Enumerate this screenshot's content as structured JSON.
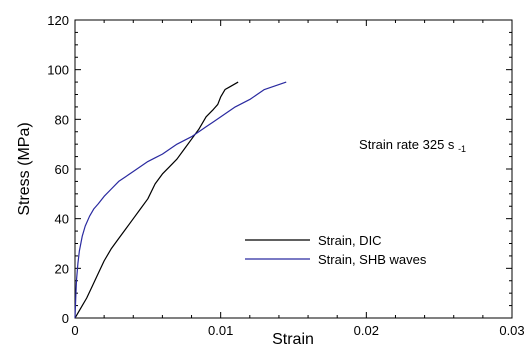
{
  "chart_data": {
    "type": "line",
    "xlabel": "Strain",
    "ylabel": "Stress (MPa)",
    "xlim": [
      0,
      0.03
    ],
    "ylim": [
      0,
      120
    ],
    "x_ticks": [
      0,
      0.01,
      0.02,
      0.03
    ],
    "x_tick_labels": [
      "0",
      "0.01",
      "0.02",
      "0.03"
    ],
    "y_ticks": [
      0,
      20,
      40,
      60,
      80,
      100,
      120
    ],
    "y_tick_labels": [
      "0",
      "20",
      "40",
      "60",
      "80",
      "100",
      "120"
    ],
    "grid": false,
    "legend_position": "lower-right",
    "annotation": {
      "text": "Strain rate 325 s",
      "superscript": "-1",
      "x": 0.0195,
      "y": 68
    },
    "series": [
      {
        "name": "Strain, DIC",
        "color": "#000000",
        "x": [
          0,
          0.0001,
          0.0003,
          0.0005,
          0.0008,
          0.0012,
          0.0016,
          0.002,
          0.0025,
          0.003,
          0.0035,
          0.004,
          0.0045,
          0.005,
          0.0055,
          0.006,
          0.0065,
          0.007,
          0.0075,
          0.008,
          0.0085,
          0.009,
          0.0095,
          0.0098,
          0.01,
          0.0103,
          0.0106,
          0.0109,
          0.0112
        ],
        "y": [
          0,
          1,
          3,
          5,
          8,
          13,
          18,
          23,
          28,
          32,
          36,
          40,
          44,
          48,
          54,
          58,
          61,
          64,
          68,
          72,
          76,
          81,
          84,
          86,
          89,
          92,
          93,
          94,
          95
        ]
      },
      {
        "name": "Strain, SHB waves",
        "color": "#2a2aa0",
        "x": [
          0,
          5e-05,
          0.0001,
          0.0002,
          0.0003,
          0.0005,
          0.0007,
          0.001,
          0.0013,
          0.0016,
          0.002,
          0.0025,
          0.003,
          0.0035,
          0.004,
          0.0045,
          0.005,
          0.0055,
          0.006,
          0.0065,
          0.007,
          0.0075,
          0.008,
          0.0085,
          0.009,
          0.0095,
          0.01,
          0.0105,
          0.011,
          0.0115,
          0.012,
          0.0125,
          0.013,
          0.0135,
          0.014,
          0.0145
        ],
        "y": [
          0,
          8,
          15,
          22,
          27,
          33,
          37,
          41,
          44,
          46,
          49,
          52,
          55,
          57,
          59,
          61,
          63,
          64.5,
          66,
          68,
          70,
          71.5,
          73,
          75,
          77,
          79,
          81,
          83,
          85,
          86.5,
          88,
          90,
          92,
          93,
          94,
          95
        ]
      }
    ]
  }
}
